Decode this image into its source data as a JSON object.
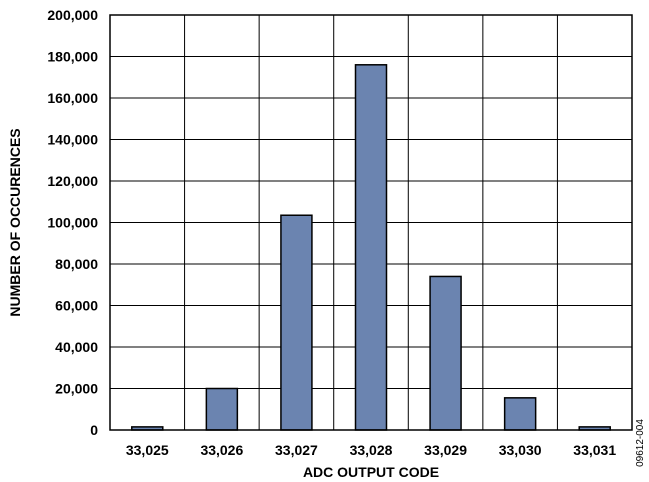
{
  "chart_data": {
    "type": "bar",
    "xlabel": "ADC OUTPUT CODE",
    "ylabel": "NUMBER OF OCCURENCES",
    "categories": [
      "33,025",
      "33,026",
      "33,027",
      "33,028",
      "33,029",
      "33,030",
      "33,031"
    ],
    "values": [
      1500,
      20000,
      103500,
      176000,
      74000,
      15500,
      1500
    ],
    "ylim": [
      0,
      200000
    ],
    "yticks": [
      0,
      20000,
      40000,
      60000,
      80000,
      100000,
      120000,
      140000,
      160000,
      180000,
      200000
    ],
    "ytick_labels": [
      "0",
      "20,000",
      "40,000",
      "60,000",
      "80,000",
      "100,000",
      "120,000",
      "140,000",
      "160,000",
      "180,000",
      "200,000"
    ],
    "grid": true,
    "bar_color": "#6b84b0",
    "figure_id": "09612-004"
  }
}
